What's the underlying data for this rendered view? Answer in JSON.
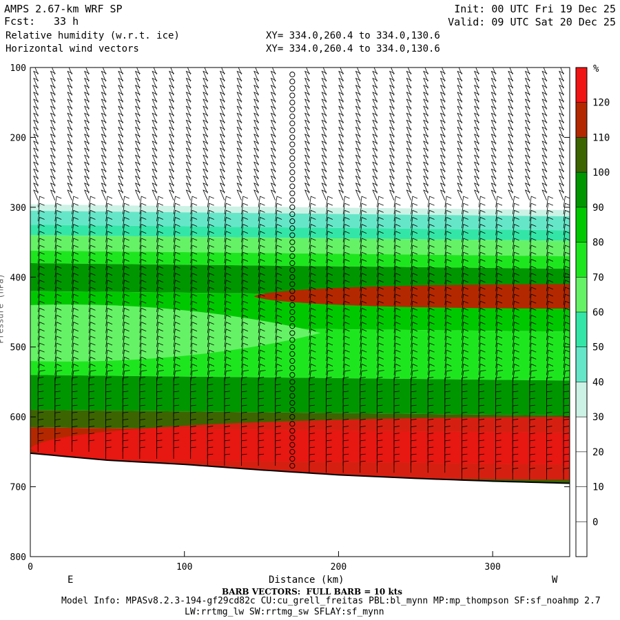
{
  "header": {
    "model": "AMPS 2.67-km WRF SP",
    "fcst_label": "Fcst:",
    "fcst_value": "33 h",
    "field1": "Relative humidity (w.r.t. ice)",
    "field2": "Horizontal wind vectors",
    "init": "Init: 00 UTC Fri 19 Dec 25",
    "valid": "Valid: 09 UTC Sat 20 Dec 25",
    "xy1": "XY= 334.0,260.4 to 334.0,130.6",
    "xy2": "XY= 334.0,260.4 to 334.0,130.6"
  },
  "footer": {
    "barb_note": "BARB VECTORS:  FULL BARB = 10 kts",
    "model_info_1": "Model Info: MPASv8.2.3-194-gf29cd82c CU:cu_grell_freitas PBL:bl_mynn MP:mp_thompson SF:sf_noahmp 2.7",
    "model_info_2": "LW:rrtmg_lw SW:rrtmg_sw SFLAY:sf_mynn"
  },
  "chart_data": {
    "type": "heatmap",
    "title": "Relative humidity (w.r.t. ice) and horizontal wind vectors",
    "xlabel": "Distance (km)",
    "ylabel": "Pressure (hPa)",
    "xlim": [
      0,
      350
    ],
    "ylim": [
      800,
      100
    ],
    "x_ticks": [
      0,
      100,
      200,
      300
    ],
    "y_ticks": [
      100,
      200,
      300,
      400,
      500,
      600,
      700,
      800
    ],
    "x_end_labels": [
      "E",
      "W"
    ],
    "colorbar": {
      "unit": "%",
      "levels": [
        0,
        10,
        20,
        30,
        40,
        50,
        60,
        70,
        80,
        90,
        100,
        110,
        120
      ],
      "colors": [
        "#ffffff",
        "#ffffff",
        "#ffffff",
        "#ffffff",
        "#ccf2e6",
        "#66e6c8",
        "#33e6a8",
        "#66f266",
        "#1ee61e",
        "#00c800",
        "#009600",
        "#3c6400",
        "#b42800",
        "#f01414"
      ]
    },
    "surface_pressure": [
      {
        "x": 0,
        "p": 652
      },
      {
        "x": 50,
        "p": 662
      },
      {
        "x": 100,
        "p": 668
      },
      {
        "x": 150,
        "p": 676
      },
      {
        "x": 200,
        "p": 683
      },
      {
        "x": 250,
        "p": 688
      },
      {
        "x": 300,
        "p": 692
      },
      {
        "x": 350,
        "p": 695
      }
    ],
    "rh_layers": [
      {
        "p_top": 296,
        "p_bot": 305,
        "rh": 35
      },
      {
        "p_top": 305,
        "p_bot": 325,
        "rh": 45
      },
      {
        "p_top": 325,
        "p_bot": 340,
        "rh": 55
      },
      {
        "p_top": 340,
        "p_bot": 362,
        "rh": 65
      },
      {
        "p_top": 362,
        "p_bot": 380,
        "rh": 75
      },
      {
        "p_top": 380,
        "p_bot": 420,
        "rh": 95
      },
      {
        "p_top": 420,
        "p_bot": 470,
        "rh": 85
      },
      {
        "p_top": 470,
        "p_bot": 540,
        "rh": 75
      },
      {
        "p_top": 540,
        "p_bot": 590,
        "rh": 95
      },
      {
        "p_top": 590,
        "p_bot": 615,
        "rh": 105
      },
      {
        "p_top": 615,
        "p_bot": 660,
        "rh": 115
      },
      {
        "p_top": 660,
        "p_bot": 700,
        "rh": 105
      }
    ],
    "rh_features": [
      {
        "name": "dry tongue",
        "x_range": [
          0,
          175
        ],
        "p_range": [
          440,
          520
        ],
        "rh": 65
      },
      {
        "name": "moist band upper",
        "x_range": [
          145,
          350
        ],
        "p_range": [
          410,
          445
        ],
        "rh": 115
      },
      {
        "name": "saturated low layer",
        "x_range": [
          0,
          350
        ],
        "p_range": [
          600,
          690
        ],
        "rh": 120
      }
    ],
    "wind_barbs": {
      "x_spacing_km": 11,
      "p_spacing_hpa": 10,
      "calm_column_x": 173,
      "full_barb_kts": 10
    }
  }
}
